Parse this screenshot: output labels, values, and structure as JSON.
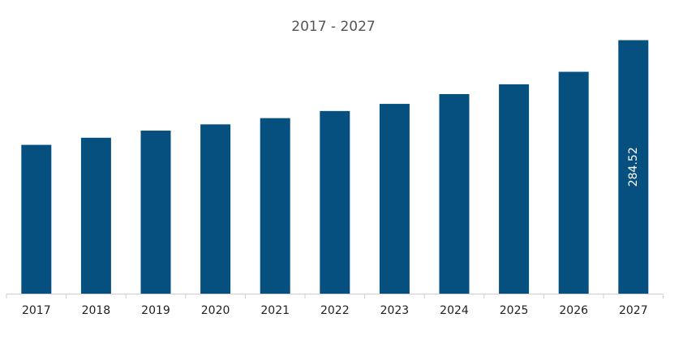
{
  "chart_data": {
    "type": "bar",
    "title": "2017 - 2027",
    "xlabel": "",
    "ylabel": "",
    "categories": [
      "2017",
      "2018",
      "2019",
      "2020",
      "2021",
      "2022",
      "2023",
      "2024",
      "2025",
      "2026",
      "2027"
    ],
    "values": [
      167,
      175,
      183,
      190,
      197,
      205,
      213,
      224,
      235,
      249,
      284.52
    ],
    "data_labels": [
      "",
      "",
      "",
      "",
      "",
      "",
      "",
      "",
      "",
      "",
      "284.52"
    ],
    "ylim": [
      0,
      295
    ],
    "grid": false,
    "legend": "none",
    "bar_color": "#05507f"
  }
}
